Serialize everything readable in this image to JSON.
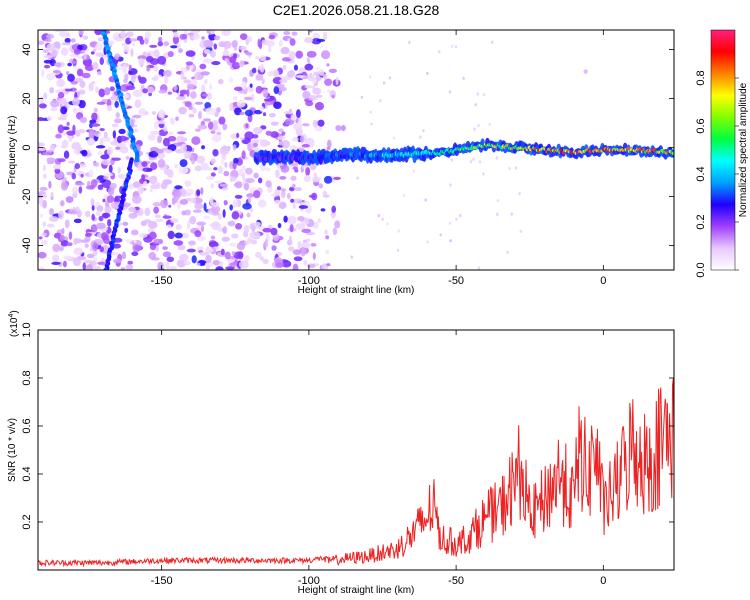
{
  "figure_title": "C2E1.2026.058.21.18.G28",
  "chart_data": [
    {
      "type": "heatmap",
      "title": "C2E1.2026.058.21.18.G28",
      "xlabel": "Height of straight line (km)",
      "ylabel": "Frequency (Hz)",
      "xlim": [
        -192,
        24
      ],
      "ylim": [
        -50,
        48
      ],
      "xticks": [
        -150,
        -100,
        -50,
        0
      ],
      "yticks": [
        -40,
        -20,
        0,
        20,
        40
      ],
      "colorbar": {
        "label": "Normalized spectral amplitude",
        "range": [
          0.0,
          1.0
        ],
        "ticks": [
          "0.0",
          "0.2",
          "0.4",
          "0.6",
          "0.8"
        ],
        "tick_values": [
          0.0,
          0.2,
          0.4,
          0.6,
          0.8
        ],
        "colors": [
          "#ffffff",
          "#e8c8ff",
          "#a040ff",
          "#2000ff",
          "#00a0ff",
          "#00ffff",
          "#00ff40",
          "#80ff00",
          "#ffff00",
          "#ff8000",
          "#ff0000",
          "#ff2080"
        ]
      },
      "features": {
        "main_trace": {
          "x": [
            -118,
            -100,
            -85,
            -70,
            -55,
            -40,
            -30,
            -20,
            -10,
            0,
            10,
            24
          ],
          "freq": [
            -4,
            -4,
            -3,
            -3,
            -2,
            1,
            0,
            -1,
            -2,
            -1,
            -1,
            -2
          ],
          "amplitude": [
            0.25,
            0.3,
            0.35,
            0.45,
            0.55,
            0.65,
            0.75,
            0.85,
            0.9,
            0.85,
            0.85,
            0.8
          ]
        },
        "diagonal_streak": {
          "x": [
            -170,
            -158
          ],
          "freq": [
            48,
            -5
          ],
          "amplitude": 0.3
        },
        "diagonal_streak_lower": {
          "x": [
            -160,
            -169
          ],
          "freq": [
            -5,
            -50
          ],
          "amplitude": 0.25
        },
        "noise_region_x": [
          -192,
          -88
        ],
        "isolated_spot": {
          "x": -6,
          "freq": 31,
          "amplitude": 0.1
        }
      }
    },
    {
      "type": "line",
      "xlabel": "Height of straight line (km)",
      "ylabel": "SNR (10 * v/v)",
      "y_scale_label": "(x10",
      "y_scale_exponent": "4",
      "y_scale_suffix": ")",
      "xlim": [
        -192,
        24
      ],
      "ylim": [
        0,
        1.0
      ],
      "xticks": [
        -150,
        -100,
        -50,
        0
      ],
      "yticks": [
        0.2,
        0.4,
        0.6,
        0.8,
        1.0
      ],
      "ytick_labels": [
        "0.2",
        "0.4",
        "0.6",
        "0.8",
        "1.0"
      ],
      "color": "#ee2222",
      "series": [
        {
          "name": "SNR",
          "x": [
            -192,
            -170,
            -150,
            -130,
            -110,
            -100,
            -90,
            -80,
            -70,
            -65,
            -60,
            -58,
            -55,
            -50,
            -45,
            -40,
            -35,
            -30,
            -28,
            -25,
            -20,
            -15,
            -10,
            -8,
            -5,
            -3,
            0,
            5,
            10,
            15,
            20,
            24
          ],
          "y": [
            0.03,
            0.03,
            0.04,
            0.04,
            0.04,
            0.04,
            0.06,
            0.08,
            0.12,
            0.2,
            0.3,
            0.38,
            0.18,
            0.15,
            0.2,
            0.3,
            0.35,
            0.5,
            0.6,
            0.3,
            0.4,
            0.55,
            0.4,
            0.7,
            0.5,
            0.75,
            0.35,
            0.5,
            0.72,
            0.6,
            0.75,
            0.8
          ]
        }
      ]
    }
  ]
}
